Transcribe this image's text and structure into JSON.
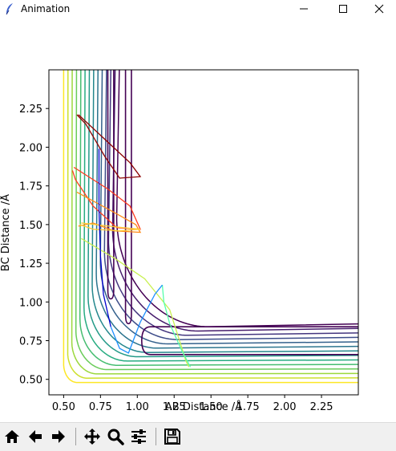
{
  "window": {
    "title": "Animation",
    "controls": {
      "minimize": "–",
      "maximize": "☐",
      "close": "✕"
    }
  },
  "toolbar": {
    "buttons": [
      {
        "name": "home-button",
        "icon": "home-icon"
      },
      {
        "name": "back-button",
        "icon": "arrow-left-icon"
      },
      {
        "name": "forward-button",
        "icon": "arrow-right-icon"
      },
      {
        "name": "pan-button",
        "icon": "move-icon"
      },
      {
        "name": "zoom-button",
        "icon": "zoom-icon"
      },
      {
        "name": "configure-subplots-button",
        "icon": "sliders-icon"
      },
      {
        "name": "save-button",
        "icon": "save-icon"
      }
    ]
  },
  "chart_data": {
    "type": "line",
    "title": "",
    "xlabel": "AB Distance /Å",
    "ylabel": "BC Distance /Å",
    "xlim": [
      0.4,
      2.5
    ],
    "ylim": [
      0.4,
      2.5
    ],
    "xticks": [
      "0.50",
      "0.75",
      "1.00",
      "1.25",
      "1.50",
      "1.75",
      "2.00",
      "2.25"
    ],
    "yticks": [
      "0.50",
      "0.75",
      "1.00",
      "1.25",
      "1.50",
      "1.75",
      "2.00",
      "2.25"
    ],
    "grid": false,
    "legend": "none",
    "contours": {
      "count": 14,
      "colormap": [
        "#440154",
        "#472d7b",
        "#3b528b",
        "#2c728e",
        "#21918c",
        "#28ae80",
        "#5ec962",
        "#addc30",
        "#fde725"
      ]
    },
    "trajectory_segments": [
      {
        "color": "#8b0000",
        "points": [
          [
            0.6,
            2.21
          ],
          [
            0.95,
            1.9
          ],
          [
            1.02,
            1.81
          ],
          [
            0.88,
            1.8
          ],
          [
            0.78,
            1.94
          ],
          [
            0.65,
            2.15
          ],
          [
            0.59,
            2.21
          ]
        ]
      },
      {
        "color": "#ff3b1f",
        "points": [
          [
            0.57,
            1.87
          ],
          [
            0.8,
            1.73
          ],
          [
            0.95,
            1.62
          ],
          [
            1.02,
            1.47
          ],
          [
            0.86,
            1.48
          ],
          [
            0.7,
            1.62
          ],
          [
            0.58,
            1.79
          ],
          [
            0.56,
            1.85
          ]
        ]
      },
      {
        "color": "#ff8c1a",
        "points": [
          [
            0.59,
            1.71
          ],
          [
            0.86,
            1.57
          ],
          [
            0.99,
            1.5
          ],
          [
            1.02,
            1.45
          ],
          [
            0.84,
            1.46
          ],
          [
            0.7,
            1.51
          ],
          [
            0.6,
            1.49
          ]
        ]
      },
      {
        "color": "#ffcc33",
        "points": [
          [
            0.62,
            1.51
          ],
          [
            0.9,
            1.48
          ],
          [
            1.02,
            1.47
          ],
          [
            0.88,
            1.46
          ],
          [
            0.7,
            1.47
          ],
          [
            0.61,
            1.5
          ]
        ]
      },
      {
        "color": "#c8f050",
        "points": [
          [
            0.62,
            1.41
          ],
          [
            0.85,
            1.28
          ],
          [
            1.05,
            1.15
          ],
          [
            1.22,
            0.95
          ],
          [
            1.33,
            0.62
          ],
          [
            1.35,
            0.58
          ]
        ]
      },
      {
        "color": "#55ffaa",
        "points": [
          [
            1.36,
            0.58
          ],
          [
            1.3,
            0.69
          ],
          [
            1.22,
            0.86
          ],
          [
            1.18,
            1.0
          ],
          [
            1.17,
            1.11
          ]
        ]
      },
      {
        "color": "#1e90ff",
        "points": [
          [
            1.17,
            1.11
          ],
          [
            1.12,
            1.05
          ],
          [
            1.02,
            0.87
          ],
          [
            0.94,
            0.67
          ],
          [
            0.88,
            0.7
          ],
          [
            0.82,
            0.84
          ]
        ]
      },
      {
        "color": "#0000cd",
        "points": [
          [
            0.82,
            0.84
          ],
          [
            0.77,
            1.05
          ],
          [
            0.75,
            1.3
          ],
          [
            0.74,
            1.6
          ],
          [
            0.74,
            1.99
          ]
        ]
      }
    ]
  }
}
